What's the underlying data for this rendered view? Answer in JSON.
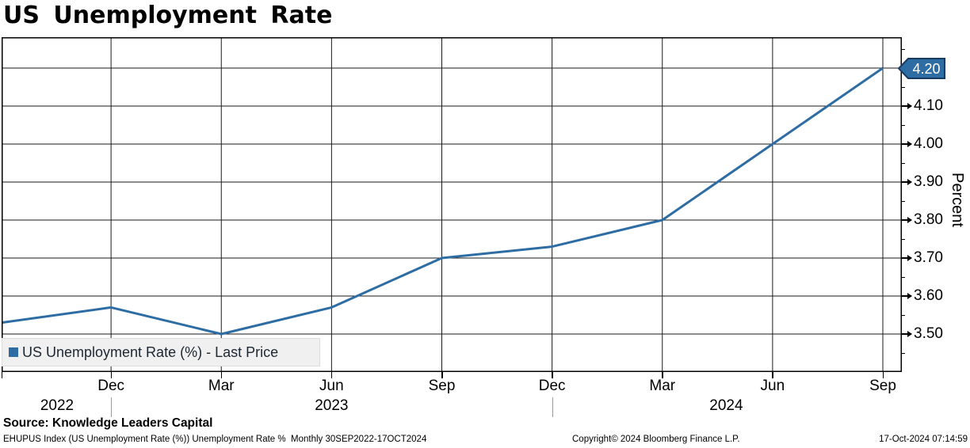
{
  "title": "US Unemployment Rate",
  "chart_data": {
    "type": "line",
    "title": "US Unemployment Rate",
    "ylabel": "Percent",
    "ylim": [
      3.4,
      4.28
    ],
    "grid": "both",
    "y_major_ticks": [
      "3.50",
      "3.60",
      "3.70",
      "3.80",
      "3.90",
      "4.00",
      "4.10",
      "4.20"
    ],
    "y_minor_step": 0.05,
    "last_price_badge": "4.20",
    "badge_color": "#2e6da4",
    "legend": {
      "label": "US Unemployment Rate (%) - Last Price",
      "position": "bottom-left"
    },
    "x_quarter_ticks": [
      {
        "q": 1,
        "label": "Dec"
      },
      {
        "q": 2,
        "label": "Mar"
      },
      {
        "q": 3,
        "label": "Jun"
      },
      {
        "q": 4,
        "label": "Sep"
      },
      {
        "q": 5,
        "label": "Dec"
      },
      {
        "q": 6,
        "label": "Mar"
      },
      {
        "q": 7,
        "label": "Jun"
      },
      {
        "q": 8,
        "label": "Sep"
      }
    ],
    "year_labels": [
      {
        "label": "2022",
        "q": 0.51
      },
      {
        "label": "2023",
        "q": 3.0
      },
      {
        "label": "2024",
        "q": 6.58
      }
    ],
    "year_divider_q": [
      1,
      5
    ],
    "series": [
      {
        "name": "US Unemployment Rate (%) - Last Price",
        "color": "#2e6da4",
        "x": [
          "Sep 2022",
          "Dec 2022",
          "Mar 2023",
          "Jun 2023",
          "Sep 2023",
          "Dec 2023",
          "Mar 2024",
          "Jun 2024",
          "Sep 2024"
        ],
        "values": [
          3.53,
          3.57,
          3.5,
          3.57,
          3.7,
          3.73,
          3.8,
          4.0,
          4.2
        ]
      }
    ]
  },
  "source_line": "Source: Knowledge Leaders Capital",
  "footer": {
    "left": "EHUPUS Index (US Unemployment Rate (%)) Unemployment Rate %  Monthly 30SEP2022-17OCT2024",
    "copyright": "Copyright© 2024 Bloomberg Finance L.P.",
    "datetime": "17-Oct-2024 07:14:59"
  }
}
